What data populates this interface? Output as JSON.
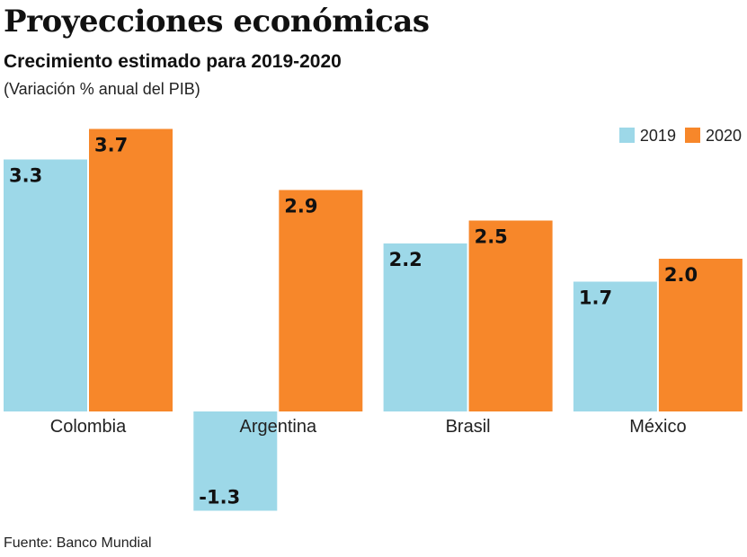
{
  "chart_data": {
    "type": "bar",
    "title": "Proyecciones económicas",
    "subtitle": "Crecimiento estimado para 2019-2020",
    "note": "(Variación % anual del PIB)",
    "source": "Fuente: Banco Mundial",
    "categories": [
      "Colombia",
      "Argentina",
      "Brasil",
      "México"
    ],
    "series": [
      {
        "name": "2019",
        "color": "#9dd8e8",
        "values": [
          3.3,
          -1.3,
          2.2,
          1.7
        ],
        "labels": [
          "3.3",
          "-1.3",
          "2.2",
          "1.7"
        ]
      },
      {
        "name": "2020",
        "color": "#f7872a",
        "values": [
          3.7,
          2.9,
          2.5,
          2.0
        ],
        "labels": [
          "3.7",
          "2.9",
          "2.5",
          "2.0"
        ]
      }
    ],
    "legend": "top-right",
    "grid": false,
    "ylim": [
      -1.3,
      3.7
    ]
  }
}
